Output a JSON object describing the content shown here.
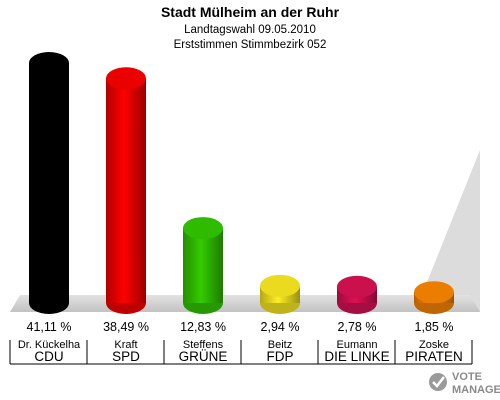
{
  "chart_data": {
    "type": "bar",
    "title": "Stadt Mülheim an der Ruhr",
    "subtitle1": "Landtagswahl 09.05.2010",
    "subtitle2": "Erststimmen Stimmbezirk 052",
    "ylim": [
      0,
      41.11
    ],
    "bars": [
      {
        "candidate": "Dr. Kückelha",
        "party": "CDU",
        "value": 41.11,
        "label": "41,11 %",
        "color": "#000000"
      },
      {
        "candidate": "Kraft",
        "party": "SPD",
        "value": 38.49,
        "label": "38,49 %",
        "color": "#ff0000"
      },
      {
        "candidate": "Steffens",
        "party": "GRÜNE",
        "value": 12.83,
        "label": "12,83 %",
        "color": "#33cc00"
      },
      {
        "candidate": "Beitz",
        "party": "FDP",
        "value": 2.94,
        "label": "2,94 %",
        "color": "#ffee22"
      },
      {
        "candidate": "Eumann",
        "party": "DIE LINKE",
        "value": 2.78,
        "label": "2,78 %",
        "color": "#dd1155"
      },
      {
        "candidate": "Zoske",
        "party": "PIRATEN",
        "value": 1.85,
        "label": "1,85 %",
        "color": "#ff8800"
      }
    ]
  },
  "watermark": {
    "line1": "VOTE",
    "line2": "MANAGER"
  }
}
